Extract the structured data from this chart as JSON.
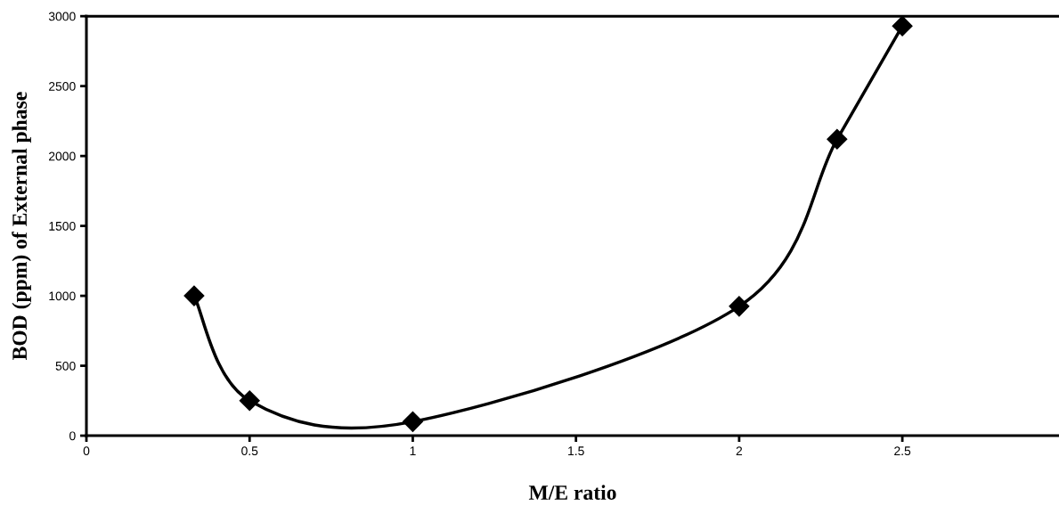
{
  "chart_data": {
    "type": "line",
    "xlabel": "M/E ratio",
    "ylabel": "BOD (ppm) of External phase",
    "x": [
      0.33,
      0.5,
      1,
      2,
      2.3,
      2.5
    ],
    "series": [
      {
        "color": "#000000",
        "values": [
          1000,
          250,
          100,
          925,
          2120,
          2930
        ]
      }
    ],
    "marker": "diamond",
    "line_style": "solid",
    "grid": false,
    "legend": false,
    "xlim": [
      0,
      2.98
    ],
    "xticks": [
      0,
      0.5,
      1,
      1.5,
      2,
      2.5
    ],
    "ylim": [
      0,
      3000
    ],
    "yticks": [
      0,
      500,
      1000,
      1500,
      2000,
      2500,
      3000
    ]
  }
}
